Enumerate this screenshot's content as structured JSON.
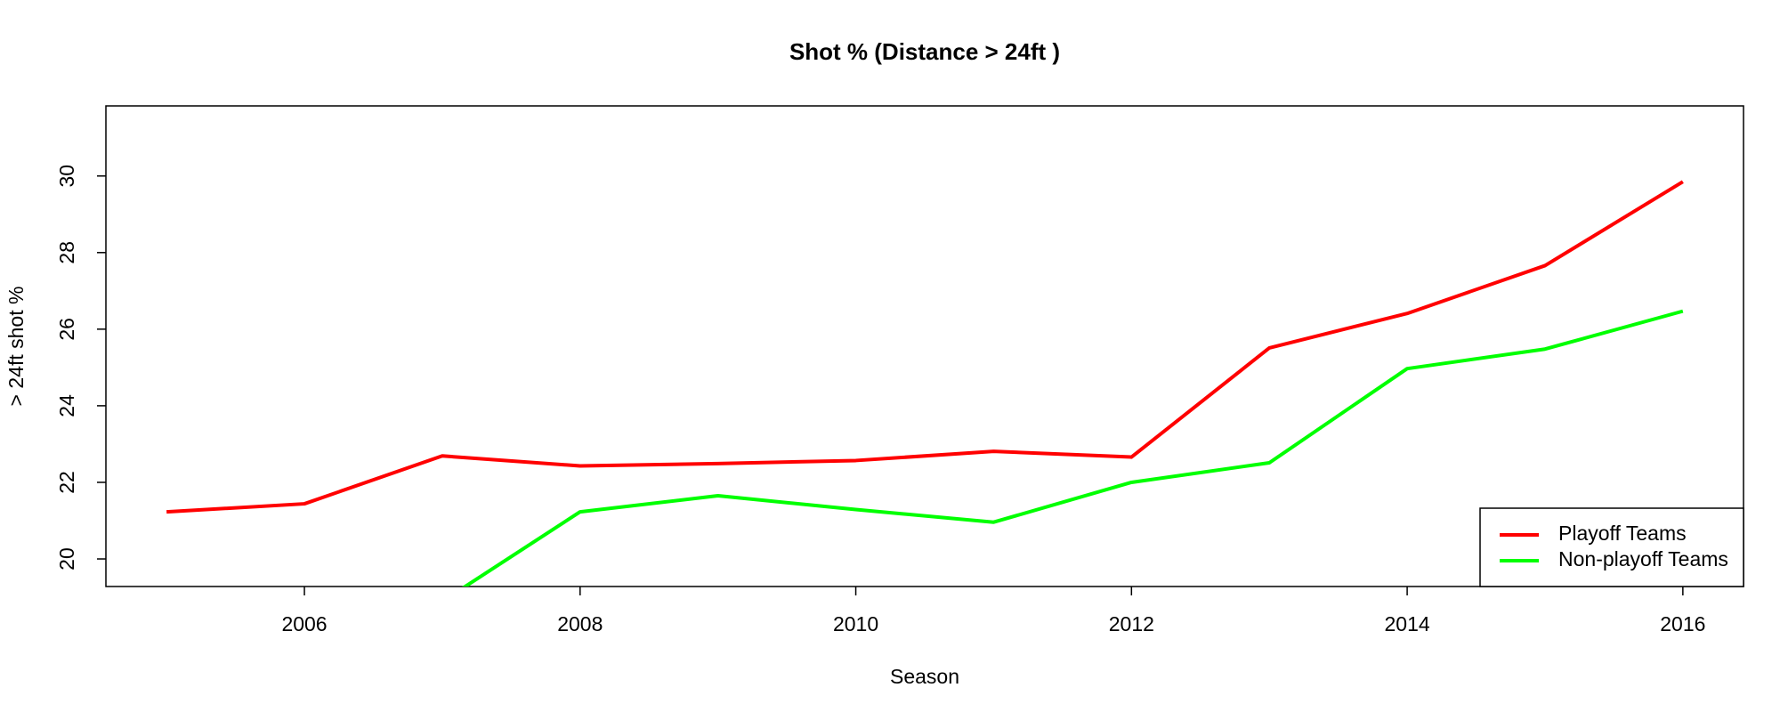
{
  "chart_data": {
    "type": "line",
    "title": "Shot % (Distance  > 24ft )",
    "x_label": "Season",
    "y_label": "> 24ft  shot %",
    "x": [
      2005,
      2006,
      2007,
      2008,
      2009,
      2010,
      2011,
      2012,
      2013,
      2014,
      2015,
      2016
    ],
    "series": [
      {
        "name": "Playoff Teams",
        "color": "#ff0000",
        "values": [
          21.23,
          21.44,
          22.69,
          22.43,
          22.49,
          22.57,
          22.81,
          22.66,
          25.51,
          26.41,
          27.66,
          29.85
        ]
      },
      {
        "name": "Non-playoff Teams",
        "color": "#00ff00",
        "values": [
          null,
          null,
          18.89,
          21.23,
          21.65,
          21.29,
          20.96,
          22.0,
          22.51,
          24.97,
          25.48,
          26.47
        ]
      }
    ],
    "xlim": [
      2004.56,
      2016.44
    ],
    "ylim": [
      19.28,
      31.83
    ],
    "xticks": [
      2006,
      2008,
      2010,
      2012,
      2014,
      2016
    ],
    "yticks": [
      20,
      22,
      24,
      26,
      28,
      30
    ],
    "legend": "bottomright"
  }
}
